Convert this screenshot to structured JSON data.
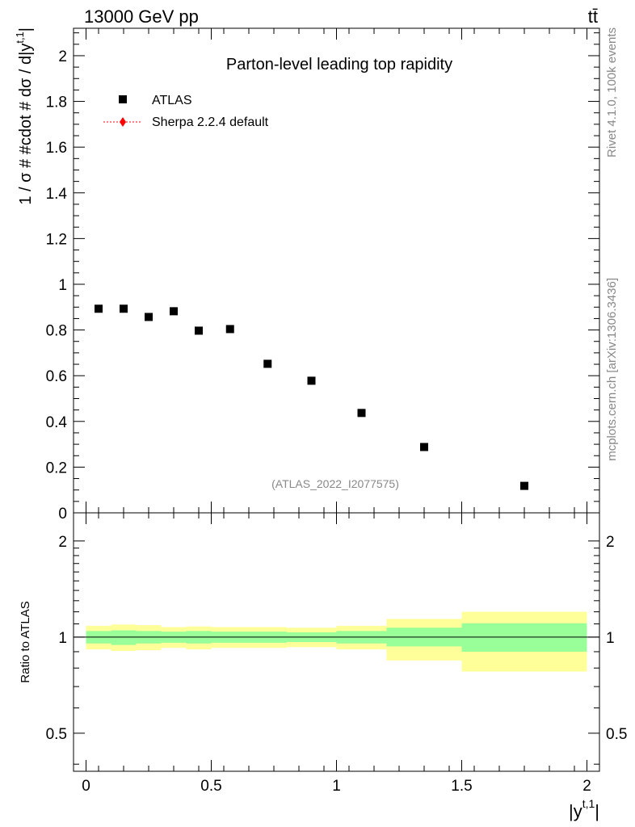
{
  "header": {
    "energy_label": "13000 GeV pp",
    "process_label": "tt̄"
  },
  "side": {
    "rivet_label": "Rivet 4.1.0,  100k events",
    "source_label": "mcplots.cern.ch [arXiv:1306.3436]"
  },
  "chart_data": {
    "type": "scatter",
    "title": "Parton-level leading top rapidity",
    "watermark": "(ATLAS_2022_I2077575)",
    "ylabel": "1 / σ # #cdot # dσ / d|y^{t,1}|",
    "ylabel_main": "1 / σ # #cdot # dσ / d|y",
    "ylabel_sup": "t,1",
    "ylabel_end": "|",
    "xlabel": "|y^{t,1}|",
    "xlabel_main": "|y",
    "xlabel_sup": "t,1",
    "xlabel_end": "|",
    "xlim": [
      -0.05,
      2.05
    ],
    "ylim": [
      0,
      2.12
    ],
    "x_ticks": [
      "0",
      "0.5",
      "1",
      "1.5",
      "2"
    ],
    "x_tick_values": [
      0,
      0.5,
      1,
      1.5,
      2
    ],
    "y_ticks": [
      "0",
      "0.2",
      "0.4",
      "0.6",
      "0.8",
      "1",
      "1.2",
      "1.4",
      "1.6",
      "1.8",
      "2"
    ],
    "y_tick_values": [
      0,
      0.2,
      0.4,
      0.6,
      0.8,
      1.0,
      1.2,
      1.4,
      1.6,
      1.8,
      2.0
    ],
    "legend": [
      {
        "name": "ATLAS",
        "marker": "square",
        "color": "#000000"
      },
      {
        "name": "Sherpa 2.2.4 default",
        "marker": "diamond",
        "color": "#ff0000"
      }
    ],
    "series": [
      {
        "name": "ATLAS",
        "bins": [
          [
            0.0,
            0.1
          ],
          [
            0.1,
            0.2
          ],
          [
            0.2,
            0.3
          ],
          [
            0.3,
            0.4
          ],
          [
            0.4,
            0.5
          ],
          [
            0.5,
            0.65
          ],
          [
            0.65,
            0.8
          ],
          [
            0.8,
            1.0
          ],
          [
            1.0,
            1.2
          ],
          [
            1.2,
            1.5
          ],
          [
            1.5,
            2.0
          ]
        ],
        "x": [
          0.05,
          0.15,
          0.25,
          0.35,
          0.45,
          0.575,
          0.725,
          0.9,
          1.1,
          1.35,
          1.75
        ],
        "values": [
          0.893,
          0.893,
          0.857,
          0.882,
          0.797,
          0.804,
          0.652,
          0.578,
          0.437,
          0.288,
          0.118
        ]
      }
    ],
    "ratio": {
      "ylabel": "Ratio to ATLAS",
      "ylim": [
        0.38,
        2.45
      ],
      "log_scale": true,
      "y_ticks": [
        "0.5",
        "1",
        "2"
      ],
      "y_tick_values": [
        0.5,
        1,
        2
      ],
      "reference": 1.0,
      "stat_band": [
        {
          "lo": 0.955,
          "hi": 1.045
        },
        {
          "lo": 0.945,
          "hi": 1.05
        },
        {
          "lo": 0.955,
          "hi": 1.045
        },
        {
          "lo": 0.96,
          "hi": 1.04
        },
        {
          "lo": 0.955,
          "hi": 1.045
        },
        {
          "lo": 0.96,
          "hi": 1.04
        },
        {
          "lo": 0.96,
          "hi": 1.04
        },
        {
          "lo": 0.965,
          "hi": 1.035
        },
        {
          "lo": 0.955,
          "hi": 1.045
        },
        {
          "lo": 0.935,
          "hi": 1.07
        },
        {
          "lo": 0.9,
          "hi": 1.105
        }
      ],
      "total_band": [
        {
          "lo": 0.915,
          "hi": 1.085
        },
        {
          "lo": 0.905,
          "hi": 1.095
        },
        {
          "lo": 0.91,
          "hi": 1.09
        },
        {
          "lo": 0.925,
          "hi": 1.075
        },
        {
          "lo": 0.915,
          "hi": 1.08
        },
        {
          "lo": 0.925,
          "hi": 1.075
        },
        {
          "lo": 0.925,
          "hi": 1.075
        },
        {
          "lo": 0.93,
          "hi": 1.07
        },
        {
          "lo": 0.915,
          "hi": 1.085
        },
        {
          "lo": 0.845,
          "hi": 1.14
        },
        {
          "lo": 0.78,
          "hi": 1.2
        }
      ]
    },
    "colors": {
      "stat_band": "#99ff99",
      "total_band": "#ffff99",
      "data": "#000000",
      "mc": "#ff0000"
    }
  }
}
